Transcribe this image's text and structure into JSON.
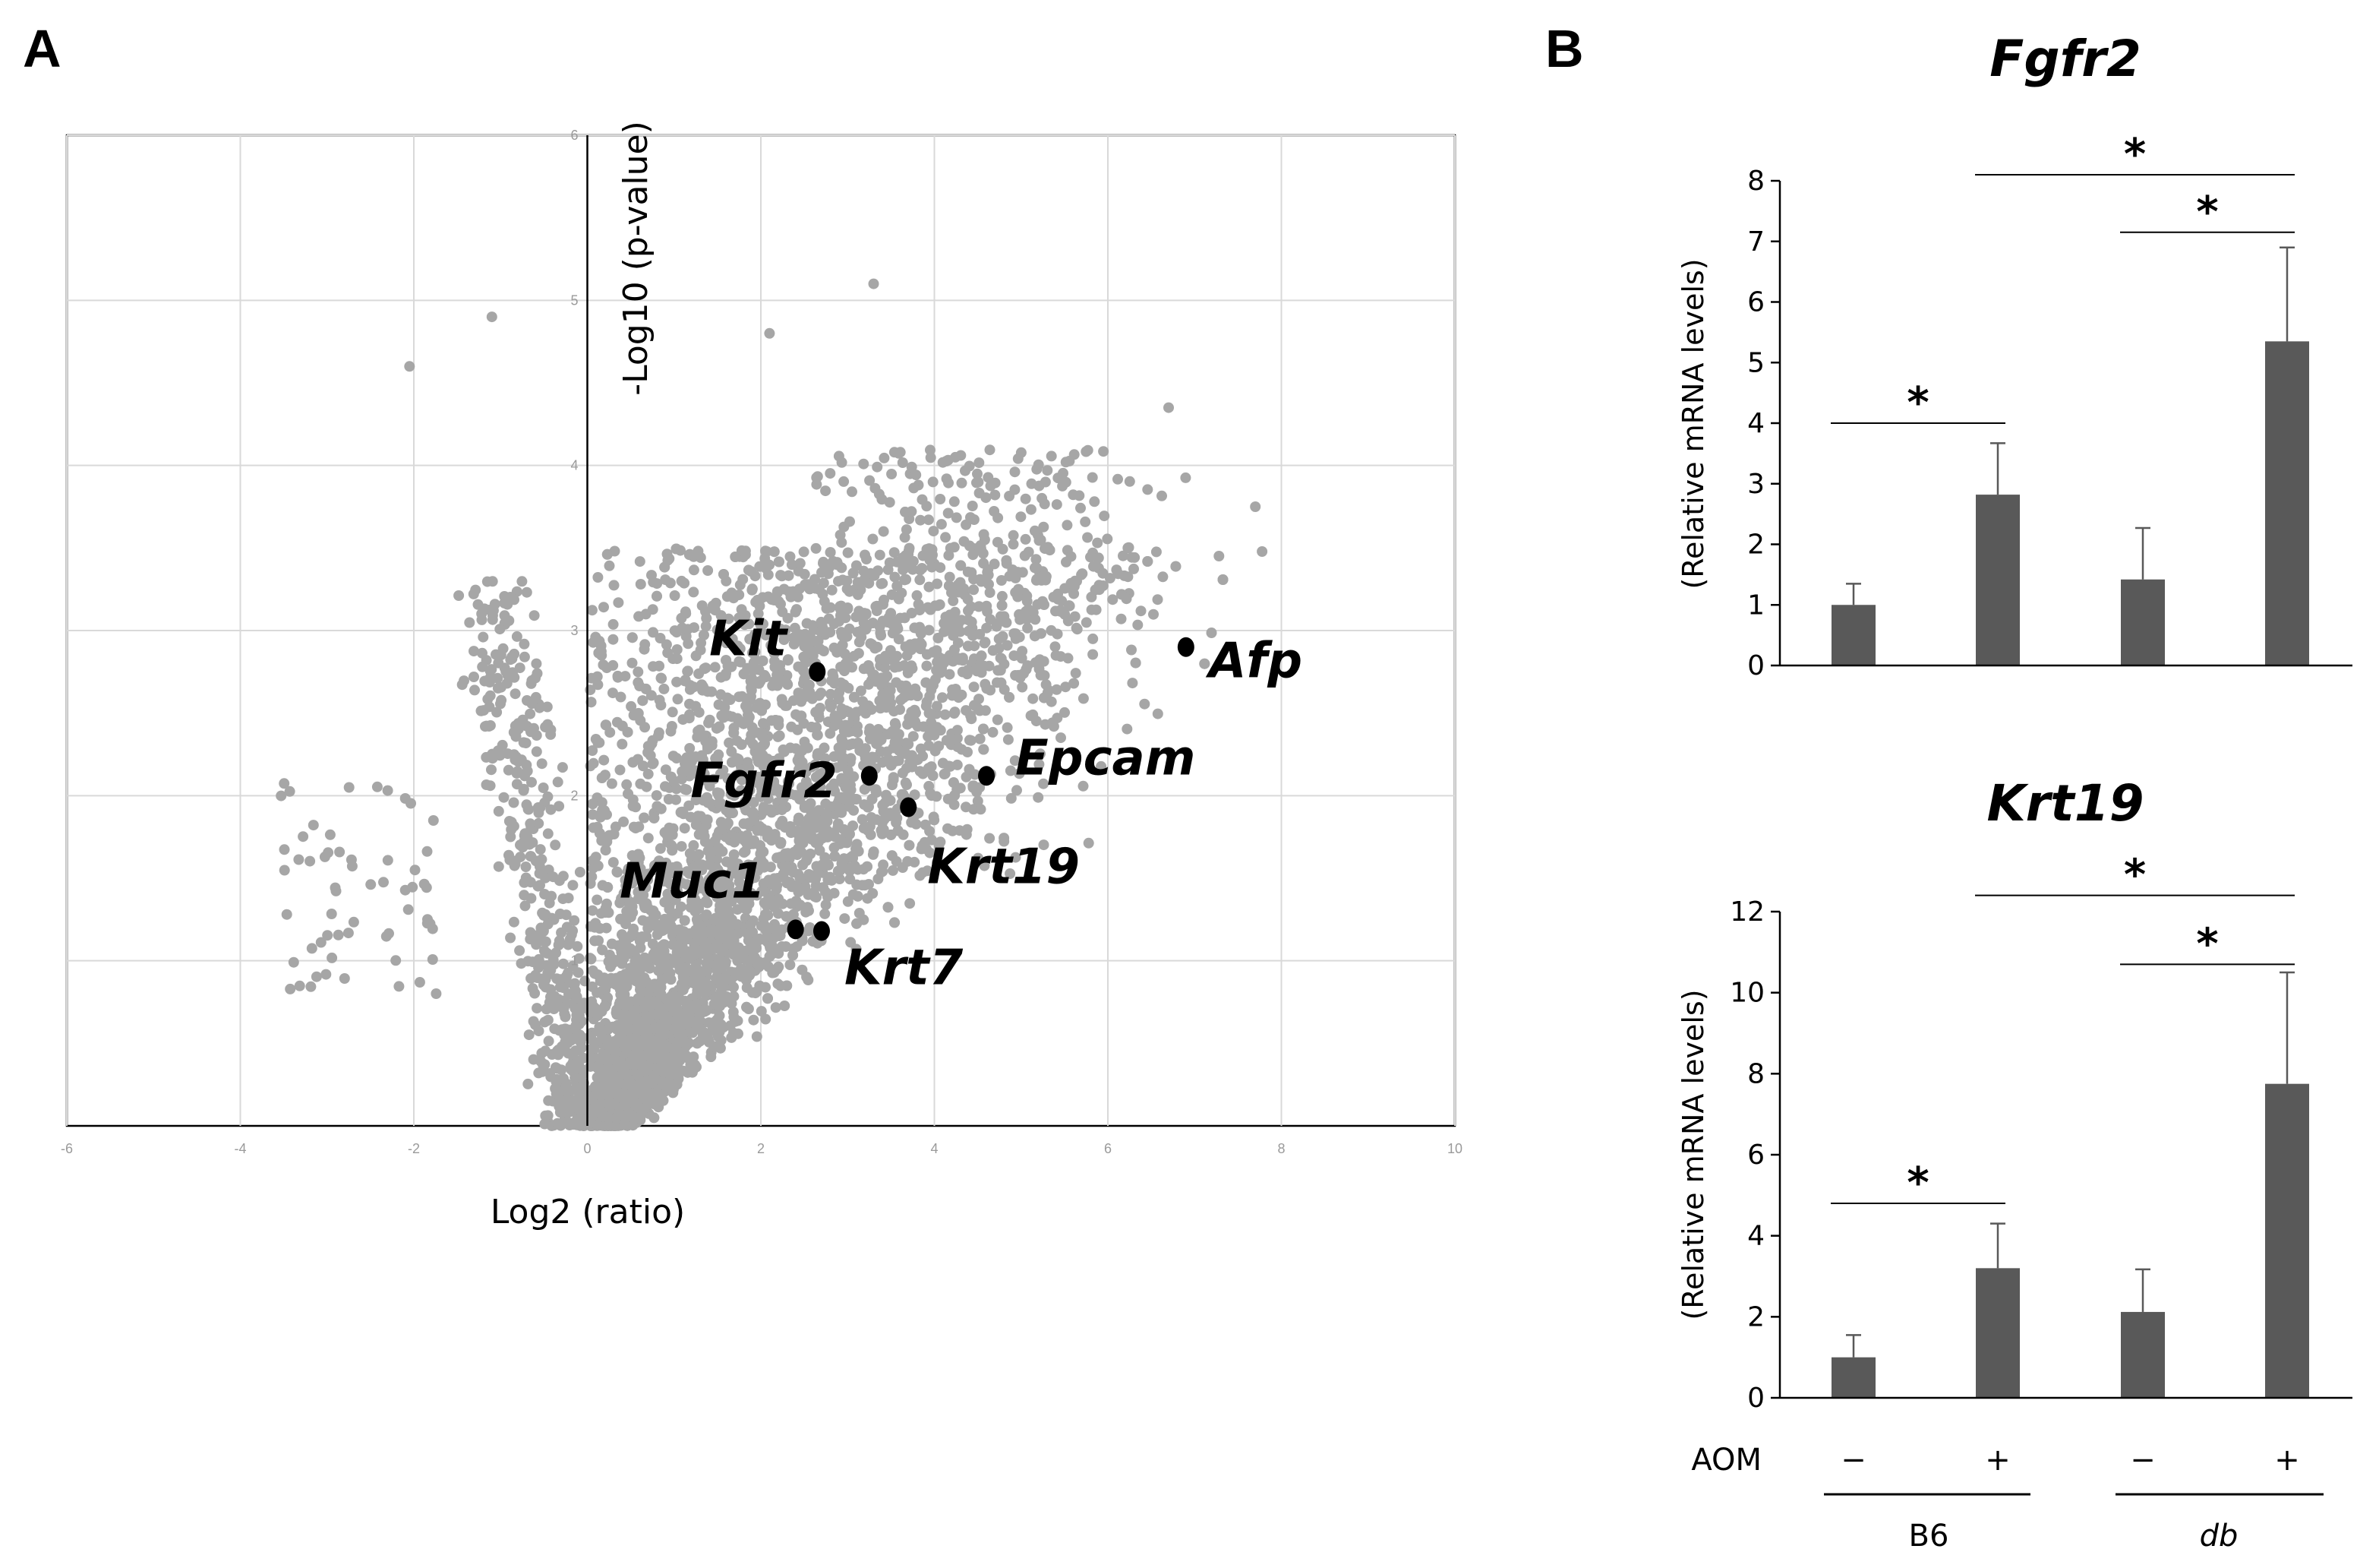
{
  "panels": {
    "a": "A",
    "b": "B"
  },
  "chart_data": [
    {
      "type": "scatter",
      "panel": "A",
      "title": "",
      "xlabel": "Log2 (ratio)",
      "ylabel": "-Log10 (p-value)",
      "xlim": [
        -6,
        10
      ],
      "ylim": [
        0,
        6
      ],
      "xticks": [
        "-6",
        "-4",
        "-2",
        "0",
        "2",
        "4",
        "6",
        "8",
        "10"
      ],
      "yticks": [
        "1",
        "2",
        "3",
        "4",
        "5",
        "6"
      ],
      "grid": true,
      "background_color": "#a6a6a6",
      "highlight_color": "#000000",
      "highlighted": [
        {
          "gene": "Kit",
          "x": 2.65,
          "y": 2.75
        },
        {
          "gene": "Afp",
          "x": 6.9,
          "y": 2.9
        },
        {
          "gene": "Epcam",
          "x": 4.6,
          "y": 2.12
        },
        {
          "gene": "Fgfr2",
          "x": 3.25,
          "y": 2.12
        },
        {
          "gene": "Krt19",
          "x": 3.7,
          "y": 1.93
        },
        {
          "gene": "Muc1",
          "x": 2.4,
          "y": 1.19
        },
        {
          "gene": "Krt7",
          "x": 2.7,
          "y": 1.18
        }
      ]
    },
    {
      "type": "bar",
      "panel": "B",
      "title": "Fgfr2",
      "ylabel": "(Relative mRNA levels)",
      "ylim": [
        0,
        8
      ],
      "yticks": [
        "0",
        "1",
        "2",
        "3",
        "4",
        "5",
        "6",
        "7",
        "8"
      ],
      "categories": [
        "B6 AOM−",
        "B6 AOM+",
        "db AOM−",
        "db AOM+"
      ],
      "values": [
        1.0,
        2.82,
        1.42,
        5.35
      ],
      "errors": [
        0.35,
        0.85,
        0.85,
        1.55
      ],
      "bar_color": "#595959",
      "significance": [
        {
          "from": 0,
          "to": 1,
          "label": "*",
          "level": 4.0
        },
        {
          "from": 2,
          "to": 3,
          "label": "*",
          "level": 7.15
        },
        {
          "from": 1,
          "to": 3,
          "label": "*",
          "level": 8.1
        }
      ]
    },
    {
      "type": "bar",
      "panel": "B",
      "title": "Krt19",
      "ylabel": "(Relative mRNA levels)",
      "ylim": [
        0,
        12
      ],
      "yticks": [
        "0",
        "2",
        "4",
        "6",
        "8",
        "10",
        "12"
      ],
      "categories": [
        "B6 AOM−",
        "B6 AOM+",
        "db AOM−",
        "db AOM+"
      ],
      "values": [
        1.0,
        3.2,
        2.12,
        7.75
      ],
      "errors": [
        0.55,
        1.1,
        1.05,
        2.75
      ],
      "bar_color": "#595959",
      "significance": [
        {
          "from": 0,
          "to": 1,
          "label": "*",
          "level": 4.8
        },
        {
          "from": 2,
          "to": 3,
          "label": "*",
          "level": 10.7
        },
        {
          "from": 1,
          "to": 3,
          "label": "*",
          "level": 12.4
        }
      ]
    }
  ],
  "conditions": {
    "label": "AOM",
    "values": [
      "−",
      "+",
      "−",
      "+"
    ],
    "groups": [
      "B6",
      "db"
    ]
  }
}
